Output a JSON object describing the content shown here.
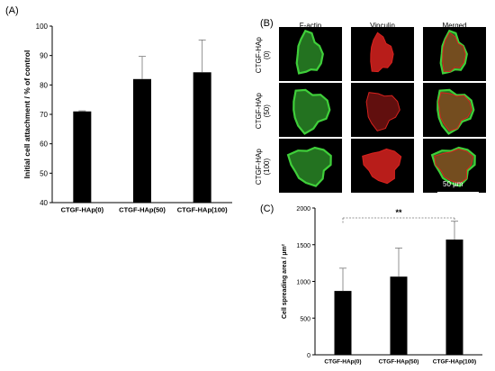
{
  "panels": {
    "a_label": "(A)",
    "b_label": "(B)",
    "c_label": "(C)"
  },
  "chart_data": [
    {
      "type": "bar",
      "panel": "(A)",
      "title": "",
      "ylabel": "Initial cell attachment / % of control",
      "xlabel": "",
      "ylim": [
        40,
        100
      ],
      "yticks": [
        40,
        50,
        60,
        70,
        80,
        90,
        100
      ],
      "categories": [
        "CTGF-HAp(0)",
        "CTGF-HAp(50)",
        "CTGF-HAp(100)"
      ],
      "values": [
        71,
        82,
        84.3
      ],
      "error": [
        0.2,
        7.7,
        11
      ],
      "bar_color": "#000000"
    },
    {
      "type": "bar",
      "panel": "(C)",
      "title": "",
      "ylabel": "Cell spreading area / µm²",
      "xlabel": "",
      "ylim": [
        0,
        2000
      ],
      "yticks": [
        0,
        500,
        1000,
        1500,
        2000
      ],
      "categories": [
        "CTGF-HAp(0)",
        "CTGF-HAp(50)",
        "CTGF-HAp(100)"
      ],
      "values": [
        870,
        1065,
        1570
      ],
      "error": [
        310,
        390,
        250
      ],
      "bar_color": "#000000",
      "significance": {
        "from": 0,
        "to": 2,
        "label": "**"
      }
    }
  ],
  "micrographs": {
    "columns": [
      "F-actin",
      "Vinculin",
      "Merged"
    ],
    "rows": [
      [
        "CTGF-HAp",
        "(0)"
      ],
      [
        "CTGF-HAp",
        "(50)"
      ],
      [
        "CTGF-HAp",
        "(100)"
      ]
    ],
    "scale_bar": "50 µm",
    "colors": {
      "f_actin": "#3fcf3a",
      "vinculin": "#d8221e"
    }
  }
}
